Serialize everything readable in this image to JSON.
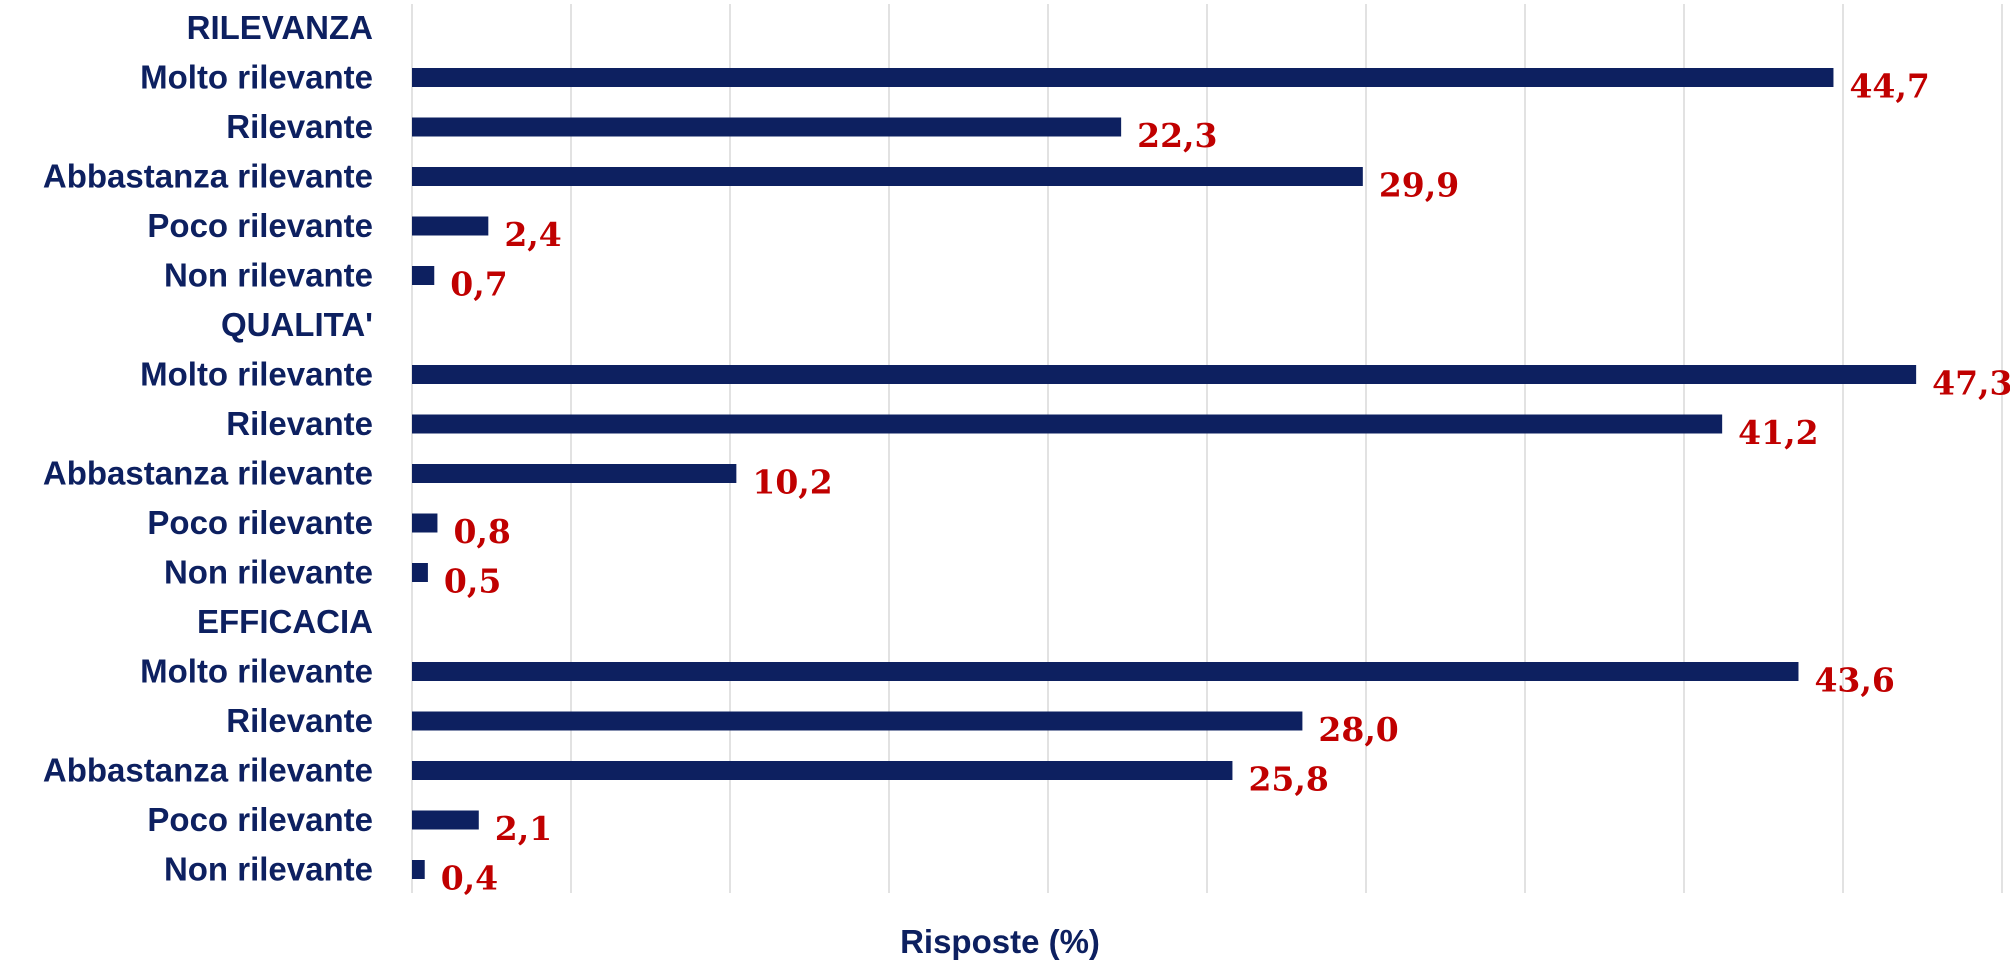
{
  "chart_data": {
    "type": "bar",
    "orientation": "horizontal",
    "title": "",
    "xlabel": "Risposte (%)",
    "ylabel": "",
    "xlim": [
      0,
      50
    ],
    "grid": true,
    "legend": "none",
    "bar_color": "#0d2060",
    "label_color": "#c00000",
    "rows": [
      {
        "label": "RILEVANZA",
        "value": null,
        "value_label": null
      },
      {
        "label": "Molto rilevante",
        "value": 44.7,
        "value_label": "44,7"
      },
      {
        "label": "Rilevante",
        "value": 22.3,
        "value_label": "22,3"
      },
      {
        "label": "Abbastanza rilevante",
        "value": 29.9,
        "value_label": "29,9"
      },
      {
        "label": "Poco rilevante",
        "value": 2.4,
        "value_label": "2,4"
      },
      {
        "label": "Non rilevante",
        "value": 0.7,
        "value_label": "0,7"
      },
      {
        "label": "QUALITA'",
        "value": null,
        "value_label": null
      },
      {
        "label": "Molto rilevante",
        "value": 47.3,
        "value_label": "47,3"
      },
      {
        "label": "Rilevante",
        "value": 41.2,
        "value_label": "41,2"
      },
      {
        "label": "Abbastanza rilevante",
        "value": 10.2,
        "value_label": "10,2"
      },
      {
        "label": "Poco rilevante",
        "value": 0.8,
        "value_label": "0,8"
      },
      {
        "label": "Non rilevante",
        "value": 0.5,
        "value_label": "0,5"
      },
      {
        "label": "EFFICACIA",
        "value": null,
        "value_label": null
      },
      {
        "label": "Molto rilevante",
        "value": 43.6,
        "value_label": "43,6"
      },
      {
        "label": "Rilevante",
        "value": 28.0,
        "value_label": "28,0"
      },
      {
        "label": "Abbastanza rilevante",
        "value": 25.8,
        "value_label": "25,8"
      },
      {
        "label": "Poco rilevante",
        "value": 2.1,
        "value_label": "2,1"
      },
      {
        "label": "Non rilevante",
        "value": 0.4,
        "value_label": "0,4"
      }
    ]
  }
}
